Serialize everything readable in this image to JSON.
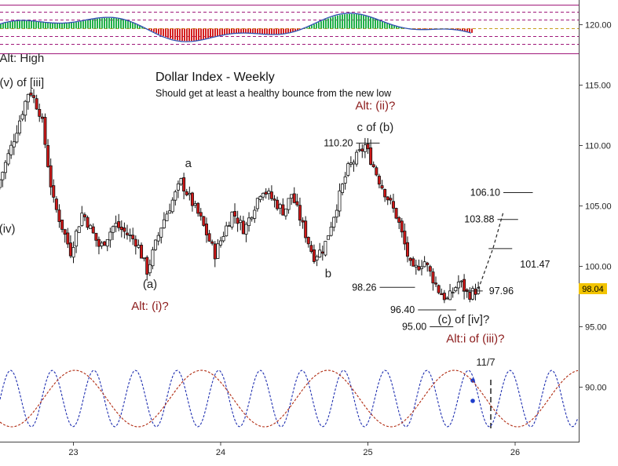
{
  "chart_data": {
    "type": "candlestick",
    "title": "Dollar Index - Weekly",
    "subtitle": "Should get at least a healthy bounce from the new low",
    "x_range": [
      2022.5,
      2026.4
    ],
    "ylim": [
      86.0,
      122.0
    ],
    "y_ticks": [
      {
        "value": 120,
        "label": "120.00"
      },
      {
        "value": 115,
        "label": "115.00"
      },
      {
        "value": 110,
        "label": "110.00"
      },
      {
        "value": 105,
        "label": "105.00"
      },
      {
        "value": 100,
        "label": "100.00"
      },
      {
        "value": 95,
        "label": "95.00"
      },
      {
        "value": 90,
        "label": "90.00"
      }
    ],
    "x_ticks": [
      {
        "value": 2023,
        "label": "23"
      },
      {
        "value": 2024,
        "label": "24"
      },
      {
        "value": 2025,
        "label": "25"
      },
      {
        "value": 2026,
        "label": "26"
      }
    ],
    "last_price": {
      "value": 98.04,
      "label": "98.04"
    },
    "pivots": [
      [
        2022.5,
        106.5
      ],
      [
        2022.6,
        110.0
      ],
      [
        2022.72,
        114.7
      ],
      [
        2022.8,
        112.5
      ],
      [
        2022.88,
        105.5
      ],
      [
        2023.0,
        101.2
      ],
      [
        2023.08,
        104.5
      ],
      [
        2023.2,
        101.5
      ],
      [
        2023.3,
        103.5
      ],
      [
        2023.45,
        102.0
      ],
      [
        2023.52,
        99.6
      ],
      [
        2023.62,
        103.5
      ],
      [
        2023.75,
        107.0
      ],
      [
        2023.88,
        104.0
      ],
      [
        2023.98,
        101.0
      ],
      [
        2024.1,
        104.5
      ],
      [
        2024.18,
        103.0
      ],
      [
        2024.3,
        106.5
      ],
      [
        2024.45,
        104.5
      ],
      [
        2024.5,
        106.0
      ],
      [
        2024.65,
        100.8
      ],
      [
        2024.72,
        101.5
      ],
      [
        2024.88,
        108.0
      ],
      [
        2025.0,
        110.0
      ],
      [
        2025.1,
        107.0
      ],
      [
        2025.22,
        104.0
      ],
      [
        2025.32,
        99.5
      ],
      [
        2025.4,
        100.5
      ],
      [
        2025.5,
        98.0
      ],
      [
        2025.56,
        97.2
      ],
      [
        2025.64,
        98.8
      ],
      [
        2025.7,
        97.6
      ],
      [
        2025.75,
        98.0
      ]
    ],
    "projection": {
      "style": "dashed",
      "points": [
        [
          2025.75,
          98.1
        ],
        [
          2025.85,
          101.5
        ],
        [
          2025.92,
          104.5
        ]
      ]
    },
    "levels": [
      {
        "label": "110.20",
        "value": 110.2,
        "x_from": 2024.92,
        "x_to": 2025.08,
        "label_side": "left"
      },
      {
        "label": "106.10",
        "value": 106.1,
        "x_from": 2025.92,
        "x_to": 2026.12,
        "label_side": "left"
      },
      {
        "label": "103.88",
        "value": 103.88,
        "x_from": 2025.88,
        "x_to": 2026.02,
        "label_side": "left"
      },
      {
        "label": "101.47",
        "value": 101.47,
        "x_from": 2025.82,
        "x_to": 2025.98,
        "label_side": "right-below"
      },
      {
        "label": "98.26",
        "value": 98.26,
        "x_from": 2025.08,
        "x_to": 2025.32,
        "label_side": "left"
      },
      {
        "label": "97.96",
        "value": 97.96,
        "x_from": 2025.64,
        "x_to": 2025.78,
        "label_side": "right"
      },
      {
        "label": "96.40",
        "value": 96.4,
        "x_from": 2025.34,
        "x_to": 2025.6,
        "label_side": "left"
      },
      {
        "label": "95.00",
        "value": 95.0,
        "x_from": 2025.42,
        "x_to": 2025.58,
        "label_side": "left"
      }
    ],
    "annotations": [
      {
        "text": "Alt: High",
        "x": 2022.65,
        "y": 116.9,
        "color": "#222222",
        "size": 15
      },
      {
        "text": "(v) of [iii]",
        "x": 2022.65,
        "y": 114.9,
        "color": "#222222",
        "size": 15
      },
      {
        "text": "(iv)",
        "x": 2022.55,
        "y": 102.8,
        "color": "#222222",
        "size": 15
      },
      {
        "text": "(a)",
        "x": 2023.52,
        "y": 98.2,
        "color": "#222222",
        "size": 15
      },
      {
        "text": "Alt: (i)?",
        "x": 2023.52,
        "y": 96.4,
        "color": "#8b1a1a",
        "size": 15
      },
      {
        "text": "a",
        "x": 2023.78,
        "y": 108.2,
        "color": "#222222",
        "size": 15
      },
      {
        "text": "b",
        "x": 2024.73,
        "y": 99.1,
        "color": "#222222",
        "size": 15
      },
      {
        "text": "Alt: (ii)?",
        "x": 2025.05,
        "y": 113.0,
        "color": "#8b1a1a",
        "size": 15
      },
      {
        "text": "c of (b)",
        "x": 2025.05,
        "y": 111.2,
        "color": "#222222",
        "size": 15
      },
      {
        "text": "(c) of [iv]?",
        "x": 2025.65,
        "y": 95.3,
        "color": "#222222",
        "size": 15
      },
      {
        "text": "Alt:i of (iii)?",
        "x": 2025.73,
        "y": 93.7,
        "color": "#8b1a1a",
        "size": 15
      },
      {
        "text": "11/7",
        "x": 2025.8,
        "y": 91.8,
        "color": "#222222",
        "size": 13
      }
    ]
  }
}
